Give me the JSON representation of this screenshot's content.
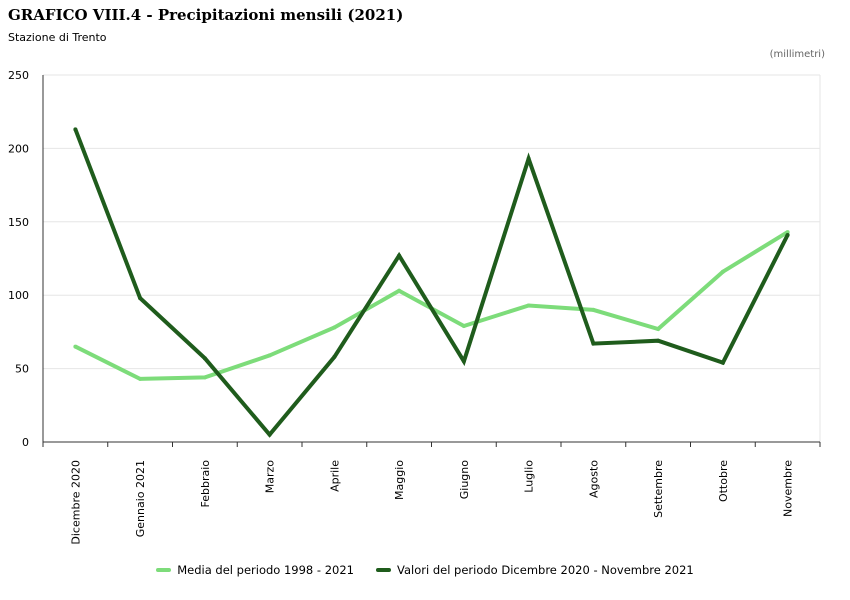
{
  "header": {
    "title": "GRAFICO VIII.4 - Precipitazioni mensili (2021)",
    "subtitle": "Stazione di Trento",
    "unit": "(millimetri)"
  },
  "colors": {
    "media": "#7ddc7a",
    "valori": "#1f5c1c",
    "grid": "#e6e6e6",
    "axis": "#333333"
  },
  "chart_data": {
    "type": "line",
    "title": "GRAFICO VIII.4 - Precipitazioni mensili (2021)",
    "subtitle": "Stazione di Trento",
    "ylabel": "(millimetri)",
    "ylim": [
      0,
      250
    ],
    "yticks": [
      0,
      50,
      100,
      150,
      200,
      250
    ],
    "categories": [
      "Dicembre 2020",
      "Gennaio 2021",
      "Febbraio",
      "Marzo",
      "Aprile",
      "Maggio",
      "Giugno",
      "Luglio",
      "Agosto",
      "Settembre",
      "Ottobre",
      "Novembre"
    ],
    "series": [
      {
        "name": "Media del periodo 1998 - 2021",
        "values": [
          65,
          43,
          44,
          59,
          78,
          103,
          79,
          93,
          90,
          77,
          116,
          143
        ]
      },
      {
        "name": "Valori del periodo Dicembre 2020 - Novembre 2021",
        "values": [
          213,
          98,
          57,
          5,
          58,
          127,
          55,
          193,
          67,
          69,
          54,
          141
        ]
      }
    ],
    "grid": true,
    "legend": "bottom"
  }
}
